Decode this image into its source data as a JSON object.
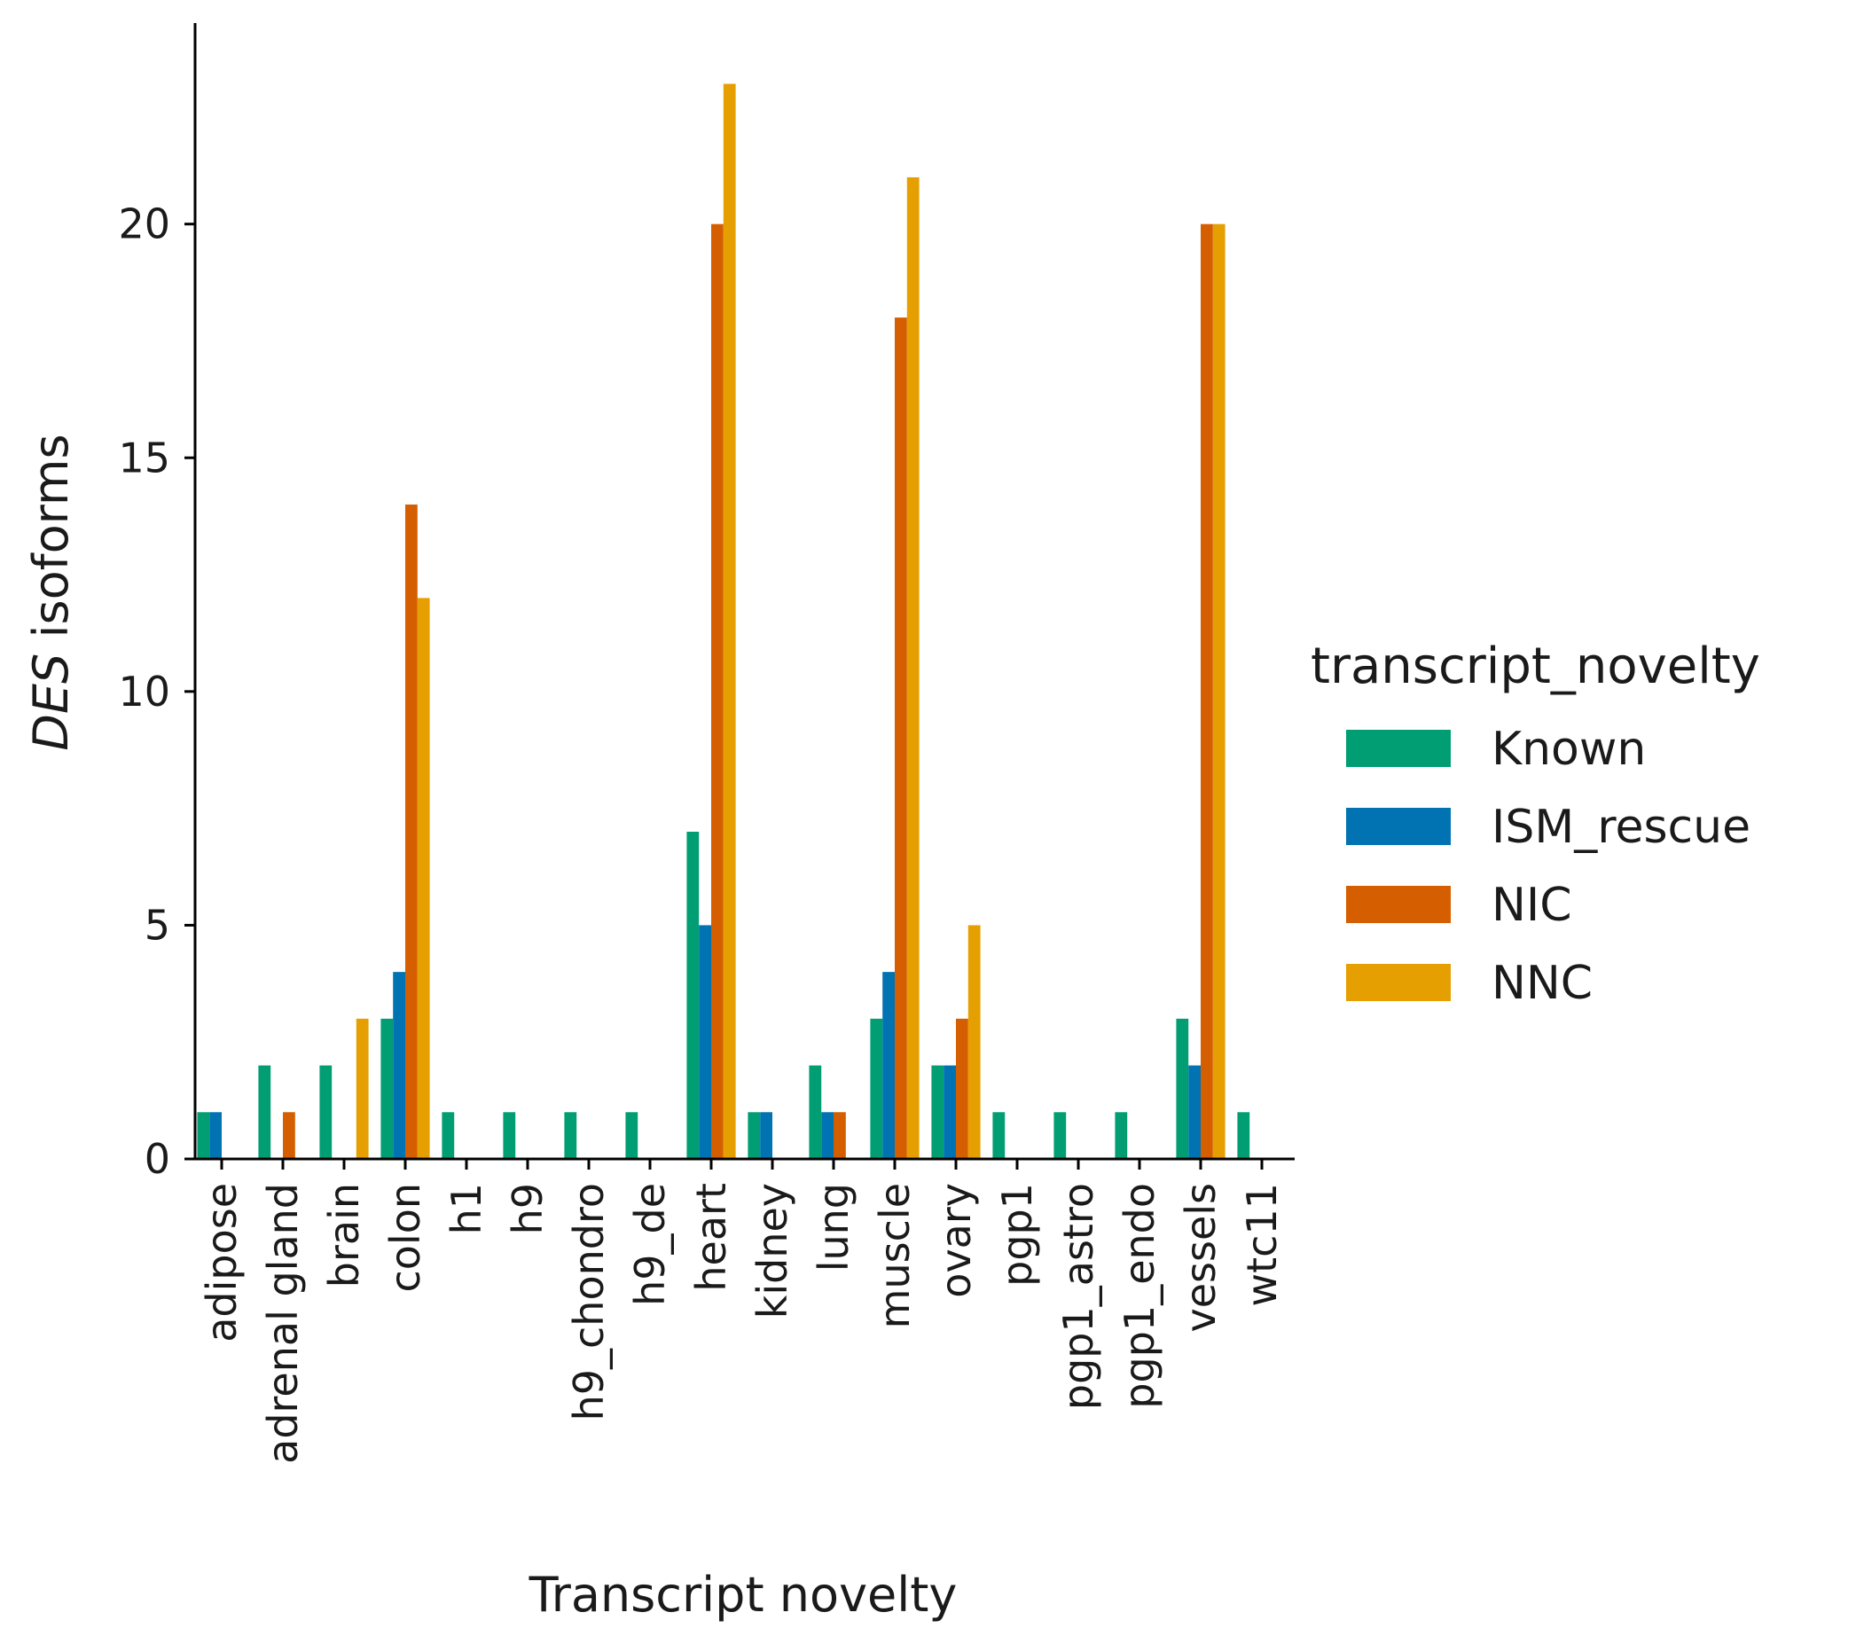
{
  "chart_data": {
    "type": "bar",
    "title": "",
    "xlabel": "Transcript novelty",
    "ylabel_italic": "DES",
    "ylabel_rest": " isoforms",
    "ylim": [
      0,
      24.3
    ],
    "yticks": [
      0,
      5,
      10,
      15,
      20
    ],
    "grid": false,
    "legend_title": "transcript_novelty",
    "legend_position": "right",
    "categories": [
      "adipose",
      "adrenal gland",
      "brain",
      "colon",
      "h1",
      "h9",
      "h9_chondro",
      "h9_de",
      "heart",
      "kidney",
      "lung",
      "muscle",
      "ovary",
      "pgp1",
      "pgp1_astro",
      "pgp1_endo",
      "vessels",
      "wtc11"
    ],
    "series": [
      {
        "name": "Known",
        "color": "#029e73",
        "values": [
          1,
          2,
          2,
          3,
          1,
          1,
          1,
          1,
          7,
          1,
          2,
          3,
          2,
          1,
          1,
          1,
          3,
          1
        ]
      },
      {
        "name": "ISM_rescue",
        "color": "#0173b2",
        "values": [
          1,
          0,
          0,
          4,
          0,
          0,
          0,
          0,
          5,
          1,
          1,
          4,
          2,
          0,
          0,
          0,
          2,
          0
        ]
      },
      {
        "name": "NIC",
        "color": "#d55e00",
        "values": [
          0,
          1,
          0,
          14,
          0,
          0,
          0,
          0,
          20,
          0,
          1,
          18,
          3,
          0,
          0,
          0,
          20,
          0
        ]
      },
      {
        "name": "NNC",
        "color": "#e69f00",
        "values": [
          0,
          0,
          3,
          12,
          0,
          0,
          0,
          0,
          23,
          0,
          0,
          21,
          5,
          0,
          0,
          0,
          20,
          0
        ]
      }
    ]
  }
}
